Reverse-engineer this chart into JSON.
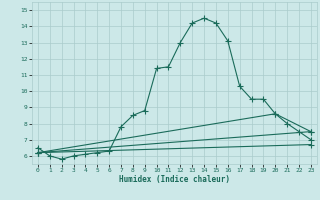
{
  "xlabel": "Humidex (Indice chaleur)",
  "bg_color": "#cce8e8",
  "line_color": "#1a6b5a",
  "grid_color": "#aacccc",
  "xlim": [
    -0.5,
    23.5
  ],
  "ylim": [
    5.5,
    15.5
  ],
  "xticks": [
    0,
    1,
    2,
    3,
    4,
    5,
    6,
    7,
    8,
    9,
    10,
    11,
    12,
    13,
    14,
    15,
    16,
    17,
    18,
    19,
    20,
    21,
    22,
    23
  ],
  "yticks": [
    6,
    7,
    8,
    9,
    10,
    11,
    12,
    13,
    14,
    15
  ],
  "series": [
    {
      "x": [
        0,
        1,
        2,
        3,
        4,
        5,
        6,
        7,
        8,
        9,
        10,
        11,
        12,
        13,
        14,
        15,
        16,
        17,
        18,
        19,
        20,
        21,
        22,
        23
      ],
      "y": [
        6.5,
        6.0,
        5.8,
        6.0,
        6.1,
        6.2,
        6.3,
        7.8,
        8.5,
        8.8,
        11.4,
        11.5,
        13.0,
        14.2,
        14.5,
        14.2,
        13.1,
        10.3,
        9.5,
        9.5,
        8.6,
        8.0,
        7.5,
        7.0
      ]
    },
    {
      "x": [
        0,
        23
      ],
      "y": [
        6.2,
        6.7
      ]
    },
    {
      "x": [
        0,
        23
      ],
      "y": [
        6.2,
        7.5
      ]
    },
    {
      "x": [
        0,
        20,
        23
      ],
      "y": [
        6.2,
        8.6,
        7.5
      ]
    }
  ]
}
